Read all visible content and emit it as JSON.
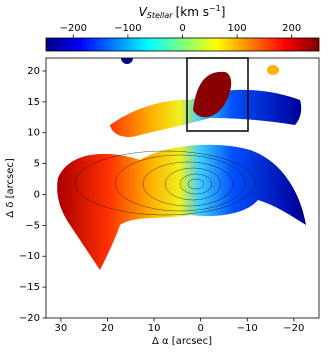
{
  "chart_data": {
    "type": "image",
    "colorbar": {
      "label": "V",
      "label_sub": "Stellar",
      "label_unit": "[km s",
      "label_sup": "−1",
      "label_end": "]",
      "clim": [
        -250,
        250
      ],
      "ticks": [
        {
          "value": -200,
          "label": "−200"
        },
        {
          "value": -100,
          "label": "−100"
        },
        0,
        100,
        200
      ],
      "colormap": [
        "#00007f",
        "#0000ff",
        "#007fff",
        "#00ffff",
        "#7fff7f",
        "#ffff00",
        "#ff7f00",
        "#ff0000",
        "#7f0000"
      ]
    },
    "xlabel": "Δ α [arcsec]",
    "ylabel": "Δ δ [arcsec]",
    "xlim": [
      33.2,
      -25.4
    ],
    "ylim": [
      -20,
      22.1
    ],
    "xticks": [
      30,
      20,
      10,
      0,
      {
        "value": -10,
        "label": "−10"
      },
      {
        "value": -20,
        "label": "−20"
      }
    ],
    "yticks": [
      {
        "value": -20,
        "label": "−20"
      },
      {
        "value": -15,
        "label": "−15"
      },
      {
        "value": -10,
        "label": "−10"
      },
      {
        "value": -5,
        "label": "−5"
      },
      0,
      5,
      10,
      15,
      20
    ]
  }
}
